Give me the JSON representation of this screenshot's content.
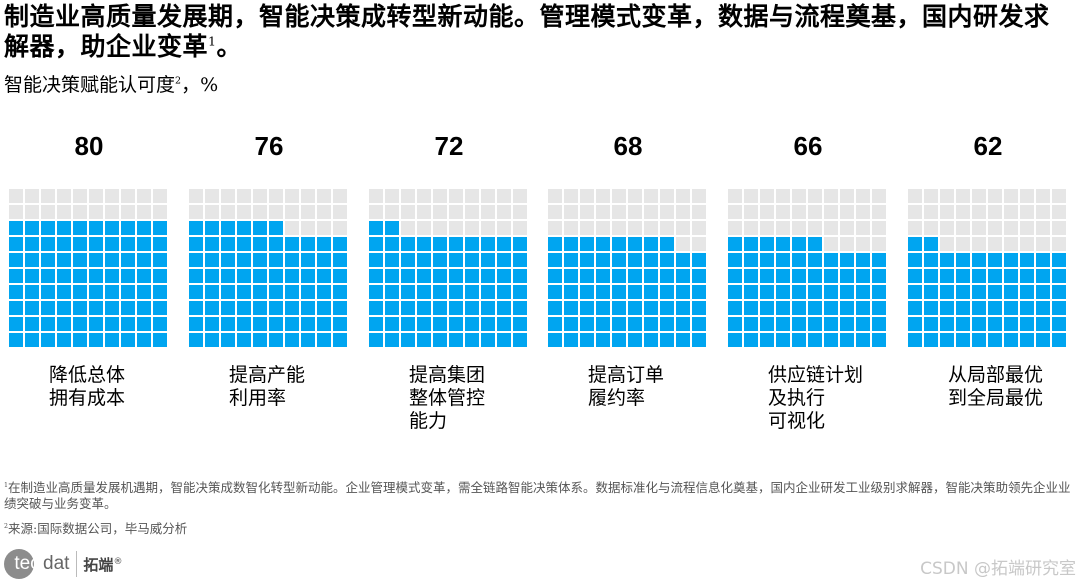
{
  "header": {
    "title": "制造业高质量发展期，智能决策成转型新动能。管理模式变革，数据与流程奠基，国内研发求解器，助企业变革",
    "title_sup": "1",
    "title_end": "。",
    "subtitle": "智能决策赋能认可度",
    "subtitle_sup": "2",
    "subtitle_unit": "，%"
  },
  "colors": {
    "filled": "#00a5f0",
    "empty": "#e6e6e6"
  },
  "chart_data": {
    "type": "waffle",
    "title": "智能决策赋能认可度，%",
    "grid": {
      "rows": 10,
      "cols": 10,
      "fill_from": "bottom-left"
    },
    "categories": [
      "降低总体拥有成本",
      "提高产能利用率",
      "提高集团整体管控能力",
      "提高订单履约率",
      "供应链计划及执行可视化",
      "从局部最优到全局最优"
    ],
    "values": [
      80,
      76,
      72,
      68,
      66,
      62
    ],
    "ylim": [
      0,
      100
    ]
  },
  "panels": [
    {
      "value": "80",
      "label": "降低总体\n拥有成本"
    },
    {
      "value": "76",
      "label": "提高产能\n利用率"
    },
    {
      "value": "72",
      "label": "提高集团\n整体管控\n能力"
    },
    {
      "value": "68",
      "label": "提高订单\n履约率"
    },
    {
      "value": "66",
      "label": "供应链计划\n及执行\n可视化"
    },
    {
      "value": "62",
      "label": "从局部最优\n到全局最优"
    }
  ],
  "footnotes": {
    "f1_sup": "1",
    "f1": "在制造业高质量发展机遇期，智能决策成数智化转型新动能。企业管理模式变革，需全链路智能决策体系。数据标准化与流程信息化奠基，国内企业研发工业级别求解器，智能决策助领先企业业绩突破与业务变革。",
    "f2_sup": "2",
    "f2": "来源:国际数据公司，毕马威分析"
  },
  "logo": {
    "circle_text": "tec",
    "text": "dat",
    "cn": "拓端",
    "reg": "®"
  },
  "watermark": "CSDN @拓端研究室"
}
